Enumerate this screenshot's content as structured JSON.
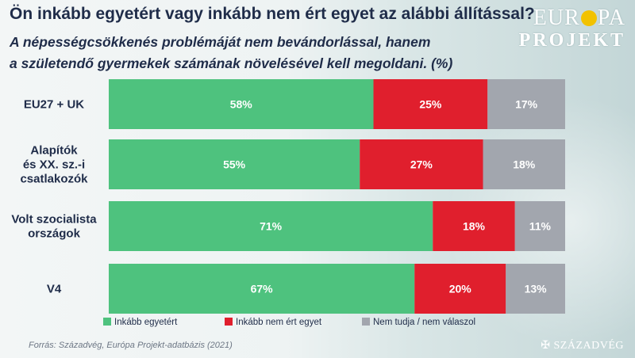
{
  "header": {
    "question": "Ön inkább egyetért vagy inkább nem ért egyet az alábbi állítással?",
    "statement_line1": "A népességcsökkenés problémáját nem bevándorlással, hanem",
    "statement_line2": "a születendő gyermekek számának növelésével kell megoldani. (%)"
  },
  "logo": {
    "line1_a": "EUR",
    "line1_b": "PA",
    "line2": "PROJEKT"
  },
  "footer": {
    "source": "Forrás: Századvég, Európa Projekt-adatbázis (2021)",
    "brand": "✠ SZÁZADVÉG"
  },
  "colors": {
    "agree": "#4ec27e",
    "disagree": "#e01f2d",
    "unknown": "#a2a6ae",
    "text": "#1f2c49"
  },
  "chart_data": {
    "type": "bar",
    "orientation": "horizontal",
    "stacked": true,
    "categories": [
      [
        "EU27 + UK"
      ],
      [
        "Alapítók",
        "és XX. sz.-i",
        "csatlakozók"
      ],
      [
        "Volt szocialista",
        "országok"
      ],
      [
        "V4"
      ]
    ],
    "series": [
      {
        "name": "Inkább egyetért",
        "values": [
          58,
          55,
          71,
          67
        ]
      },
      {
        "name": "Inkább nem ért egyet",
        "values": [
          25,
          27,
          18,
          20
        ]
      },
      {
        "name": "Nem tudja / nem válaszol",
        "values": [
          17,
          18,
          11,
          13
        ]
      }
    ],
    "value_suffix": "%",
    "xlim": [
      0,
      100
    ],
    "legend_position": "bottom",
    "grid": false
  }
}
